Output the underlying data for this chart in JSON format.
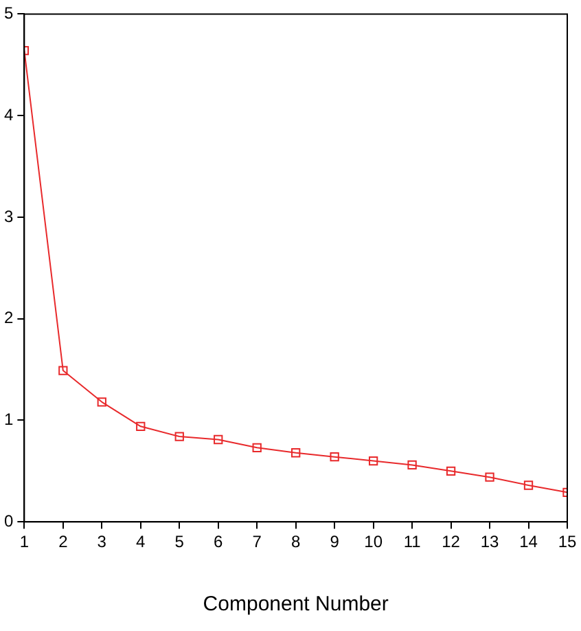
{
  "chart_data": {
    "type": "line",
    "xlabel": "Component Number",
    "x": [
      1,
      2,
      3,
      4,
      5,
      6,
      7,
      8,
      9,
      10,
      11,
      12,
      13,
      14,
      15
    ],
    "series": [
      {
        "color": "#e8292b",
        "values": [
          4.64,
          1.49,
          1.18,
          0.94,
          0.84,
          0.81,
          0.73,
          0.68,
          0.64,
          0.6,
          0.56,
          0.5,
          0.44,
          0.36,
          0.29
        ]
      }
    ],
    "xlim": [
      1,
      15
    ],
    "xticks": [
      1,
      2,
      3,
      4,
      5,
      6,
      7,
      8,
      9,
      10,
      11,
      12,
      13,
      14,
      15
    ],
    "ylim": [
      0,
      5
    ],
    "yticks": [
      0,
      1,
      2,
      3,
      4,
      5
    ],
    "grid": false,
    "legend": false,
    "marker": "square",
    "line_style": "solid"
  }
}
